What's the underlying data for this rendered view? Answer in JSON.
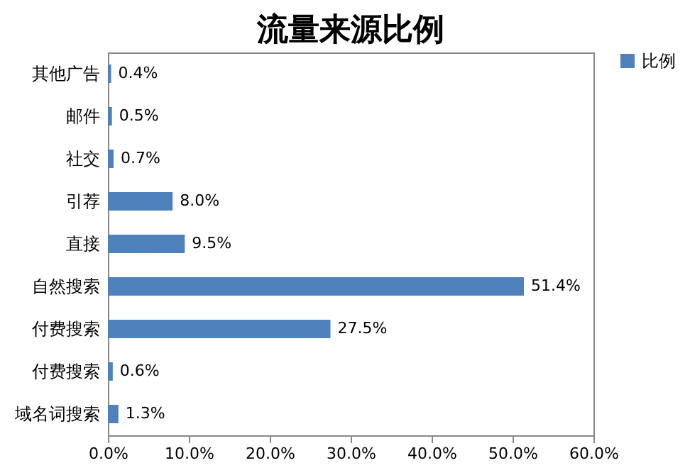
{
  "chart_data": {
    "type": "bar",
    "orientation": "horizontal",
    "title": "流量来源比例",
    "categories": [
      "其他广告",
      "邮件",
      "社交",
      "引荐",
      "直接",
      "自然搜索",
      "付费搜索",
      "付费搜索",
      "域名词搜索"
    ],
    "series": [
      {
        "name": "比例",
        "color": "#4f81bd",
        "values": [
          0.4,
          0.5,
          0.7,
          8.0,
          9.5,
          51.4,
          27.5,
          0.6,
          1.3
        ],
        "value_labels": [
          "0.4%",
          "0.5%",
          "0.7%",
          "8.0%",
          "9.5%",
          "51.4%",
          "27.5%",
          "0.6%",
          "1.3%"
        ]
      }
    ],
    "xlim": [
      0,
      60
    ],
    "xticks": [
      {
        "value": 0,
        "label": "0.0%"
      },
      {
        "value": 10,
        "label": "10.0%"
      },
      {
        "value": 20,
        "label": "20.0%"
      },
      {
        "value": 30,
        "label": "30.0%"
      },
      {
        "value": 40,
        "label": "40.0%"
      },
      {
        "value": 50,
        "label": "50.0%"
      },
      {
        "value": 60,
        "label": "60.0%"
      }
    ],
    "grid": false,
    "legend": "right"
  }
}
